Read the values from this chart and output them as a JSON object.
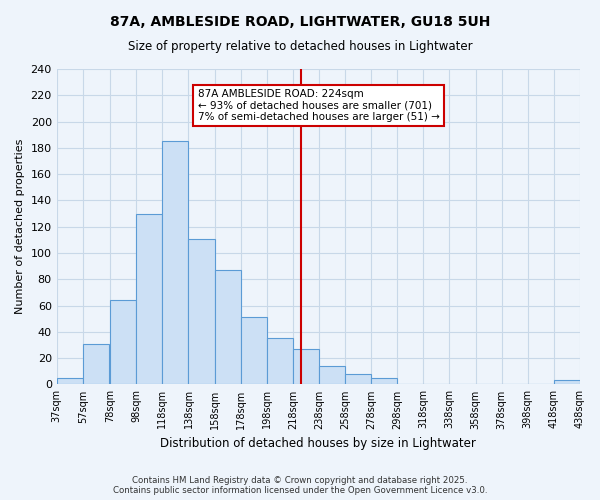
{
  "title": "87A, AMBLESIDE ROAD, LIGHTWATER, GU18 5UH",
  "subtitle": "Size of property relative to detached houses in Lightwater",
  "xlabel": "Distribution of detached houses by size in Lightwater",
  "ylabel": "Number of detached properties",
  "footer_line1": "Contains HM Land Registry data © Crown copyright and database right 2025.",
  "footer_line2": "Contains public sector information licensed under the Open Government Licence v3.0.",
  "bin_edges": [
    37,
    57,
    78,
    98,
    118,
    138,
    158,
    178,
    198,
    218,
    238,
    258,
    278,
    298,
    318,
    338,
    358,
    378,
    398,
    418,
    438
  ],
  "bin_labels": [
    "37sqm",
    "57sqm",
    "78sqm",
    "98sqm",
    "118sqm",
    "138sqm",
    "158sqm",
    "178sqm",
    "198sqm",
    "218sqm",
    "238sqm",
    "258sqm",
    "278sqm",
    "298sqm",
    "318sqm",
    "338sqm",
    "358sqm",
    "378sqm",
    "398sqm",
    "418sqm",
    "438sqm"
  ],
  "counts": [
    5,
    31,
    64,
    130,
    185,
    111,
    87,
    51,
    35,
    27,
    14,
    8,
    5,
    0,
    0,
    0,
    0,
    0,
    0,
    3
  ],
  "bar_facecolor": "#cce0f5",
  "bar_edgecolor": "#5b9bd5",
  "grid_color": "#c8d8e8",
  "bg_color": "#eef4fb",
  "vline_x": 224,
  "vline_color": "#cc0000",
  "annotation_text": "87A AMBLESIDE ROAD: 224sqm\n← 93% of detached houses are smaller (701)\n7% of semi-detached houses are larger (51) →",
  "annotation_box_edgecolor": "#cc0000",
  "ylim": [
    0,
    240
  ],
  "yticks": [
    0,
    20,
    40,
    60,
    80,
    100,
    120,
    140,
    160,
    180,
    200,
    220,
    240
  ]
}
